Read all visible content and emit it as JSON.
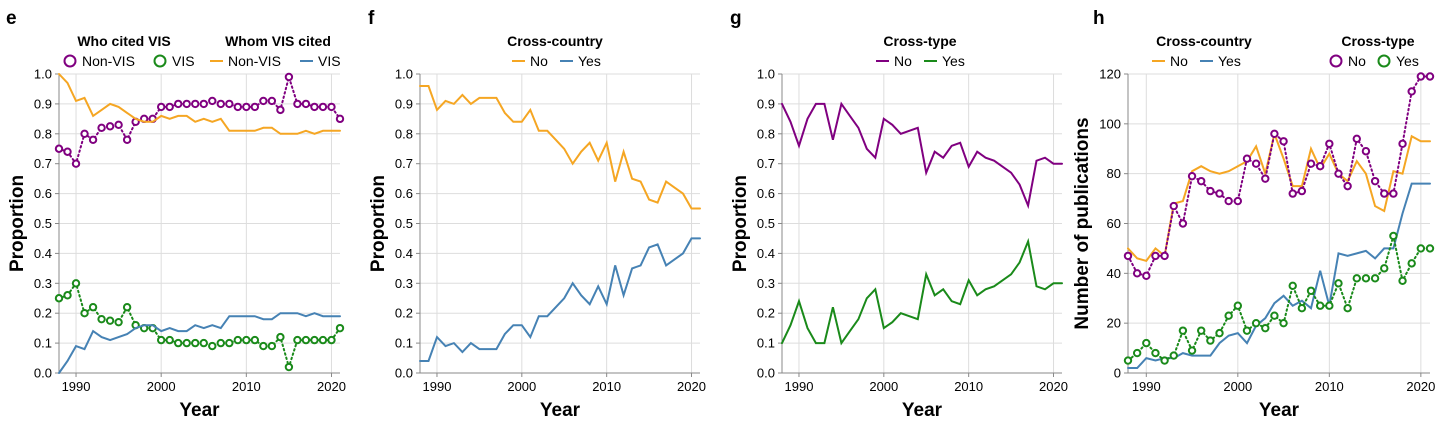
{
  "chart_data": [
    {
      "type": "line",
      "panel": "e",
      "xlabel": "Year",
      "ylabel": "Proportion",
      "xlim": [
        1988,
        2021
      ],
      "ylim": [
        0,
        1.0
      ],
      "x_ticks": [
        1990,
        2000,
        2010,
        2020
      ],
      "y_ticks": [
        "0.0",
        "0.1",
        "0.2",
        "0.3",
        "0.4",
        "0.5",
        "0.6",
        "0.7",
        "0.8",
        "0.9",
        "1.0"
      ],
      "grid": true,
      "legend_groups": [
        {
          "title": "Who cited VIS",
          "style": "dotted-circles",
          "entries": [
            "Non-VIS",
            "VIS"
          ]
        },
        {
          "title": "Whom VIS cited",
          "style": "line",
          "entries": [
            "Non-VIS",
            "VIS"
          ]
        }
      ],
      "x": [
        1988,
        1989,
        1990,
        1991,
        1992,
        1993,
        1994,
        1995,
        1996,
        1997,
        1998,
        1999,
        2000,
        2001,
        2002,
        2003,
        2004,
        2005,
        2006,
        2007,
        2008,
        2009,
        2010,
        2011,
        2012,
        2013,
        2014,
        2015,
        2016,
        2017,
        2018,
        2019,
        2020,
        2021
      ],
      "series": [
        {
          "name": "Non-VIS",
          "group": "Who cited VIS",
          "style": "dotted-circles",
          "color": "#800080",
          "values": [
            0.75,
            0.74,
            0.7,
            0.8,
            0.78,
            0.82,
            0.825,
            0.83,
            0.78,
            0.84,
            0.85,
            0.85,
            0.89,
            0.89,
            0.9,
            0.9,
            0.9,
            0.9,
            0.91,
            0.9,
            0.9,
            0.89,
            0.89,
            0.89,
            0.91,
            0.91,
            0.88,
            0.99,
            0.9,
            0.9,
            0.89,
            0.89,
            0.89,
            0.85
          ]
        },
        {
          "name": "VIS",
          "group": "Who cited VIS",
          "style": "dotted-circles",
          "color": "#1a8a1a",
          "values": [
            0.25,
            0.26,
            0.3,
            0.2,
            0.22,
            0.18,
            0.175,
            0.17,
            0.22,
            0.16,
            0.15,
            0.15,
            0.11,
            0.11,
            0.1,
            0.1,
            0.1,
            0.1,
            0.09,
            0.1,
            0.1,
            0.11,
            0.11,
            0.11,
            0.09,
            0.09,
            0.12,
            0.02,
            0.11,
            0.11,
            0.11,
            0.11,
            0.11,
            0.15
          ]
        },
        {
          "name": "Non-VIS",
          "group": "Whom VIS cited",
          "style": "line",
          "color": "#f5a623",
          "values": [
            1.0,
            0.97,
            0.91,
            0.92,
            0.86,
            0.88,
            0.9,
            0.89,
            0.87,
            0.85,
            0.84,
            0.84,
            0.86,
            0.85,
            0.86,
            0.86,
            0.84,
            0.85,
            0.84,
            0.85,
            0.81,
            0.81,
            0.81,
            0.81,
            0.82,
            0.82,
            0.8,
            0.8,
            0.8,
            0.81,
            0.8,
            0.81,
            0.81,
            0.81
          ]
        },
        {
          "name": "VIS",
          "group": "Whom VIS cited",
          "style": "line",
          "color": "#4682b4",
          "values": [
            0.0,
            0.04,
            0.09,
            0.08,
            0.14,
            0.12,
            0.11,
            0.12,
            0.13,
            0.15,
            0.16,
            0.16,
            0.14,
            0.15,
            0.14,
            0.14,
            0.16,
            0.15,
            0.16,
            0.15,
            0.19,
            0.19,
            0.19,
            0.19,
            0.18,
            0.18,
            0.2,
            0.2,
            0.2,
            0.19,
            0.2,
            0.19,
            0.19,
            0.19
          ]
        }
      ]
    },
    {
      "type": "line",
      "panel": "f",
      "xlabel": "Year",
      "ylabel": "Proportion",
      "xlim": [
        1988,
        2021
      ],
      "ylim": [
        0,
        1.0
      ],
      "x_ticks": [
        1990,
        2000,
        2010,
        2020
      ],
      "y_ticks": [
        "0.0",
        "0.1",
        "0.2",
        "0.3",
        "0.4",
        "0.5",
        "0.6",
        "0.7",
        "0.8",
        "0.9",
        "1.0"
      ],
      "grid": true,
      "legend_groups": [
        {
          "title": "Cross-country",
          "style": "line",
          "entries": [
            "No",
            "Yes"
          ]
        }
      ],
      "x": [
        1988,
        1989,
        1990,
        1991,
        1992,
        1993,
        1994,
        1995,
        1996,
        1997,
        1998,
        1999,
        2000,
        2001,
        2002,
        2003,
        2004,
        2005,
        2006,
        2007,
        2008,
        2009,
        2010,
        2011,
        2012,
        2013,
        2014,
        2015,
        2016,
        2017,
        2018,
        2019,
        2020,
        2021
      ],
      "series": [
        {
          "name": "No",
          "color": "#f5a623",
          "values": [
            0.96,
            0.96,
            0.88,
            0.91,
            0.9,
            0.93,
            0.9,
            0.92,
            0.92,
            0.92,
            0.87,
            0.84,
            0.84,
            0.88,
            0.81,
            0.81,
            0.78,
            0.75,
            0.7,
            0.74,
            0.77,
            0.71,
            0.77,
            0.64,
            0.74,
            0.65,
            0.64,
            0.58,
            0.57,
            0.64,
            0.62,
            0.6,
            0.55,
            0.55
          ]
        },
        {
          "name": "Yes",
          "color": "#4682b4",
          "values": [
            0.04,
            0.04,
            0.12,
            0.09,
            0.1,
            0.07,
            0.1,
            0.08,
            0.08,
            0.08,
            0.13,
            0.16,
            0.16,
            0.12,
            0.19,
            0.19,
            0.22,
            0.25,
            0.3,
            0.26,
            0.23,
            0.29,
            0.23,
            0.36,
            0.26,
            0.35,
            0.36,
            0.42,
            0.43,
            0.36,
            0.38,
            0.4,
            0.45,
            0.45
          ]
        }
      ]
    },
    {
      "type": "line",
      "panel": "g",
      "xlabel": "Year",
      "ylabel": "Proportion",
      "xlim": [
        1988,
        2021
      ],
      "ylim": [
        0,
        1.0
      ],
      "x_ticks": [
        1990,
        2000,
        2010,
        2020
      ],
      "y_ticks": [
        "0.0",
        "0.1",
        "0.2",
        "0.3",
        "0.4",
        "0.5",
        "0.6",
        "0.7",
        "0.8",
        "0.9",
        "1.0"
      ],
      "grid": true,
      "legend_groups": [
        {
          "title": "Cross-type",
          "style": "line",
          "entries": [
            "No",
            "Yes"
          ]
        }
      ],
      "x": [
        1988,
        1989,
        1990,
        1991,
        1992,
        1993,
        1994,
        1995,
        1996,
        1997,
        1998,
        1999,
        2000,
        2001,
        2002,
        2003,
        2004,
        2005,
        2006,
        2007,
        2008,
        2009,
        2010,
        2011,
        2012,
        2013,
        2014,
        2015,
        2016,
        2017,
        2018,
        2019,
        2020,
        2021
      ],
      "series": [
        {
          "name": "No",
          "color": "#800080",
          "values": [
            0.9,
            0.84,
            0.76,
            0.85,
            0.9,
            0.9,
            0.78,
            0.9,
            0.86,
            0.82,
            0.75,
            0.72,
            0.85,
            0.83,
            0.8,
            0.81,
            0.82,
            0.67,
            0.74,
            0.72,
            0.76,
            0.77,
            0.69,
            0.74,
            0.72,
            0.71,
            0.69,
            0.67,
            0.63,
            0.56,
            0.71,
            0.72,
            0.7,
            0.7
          ]
        },
        {
          "name": "Yes",
          "color": "#1a8a1a",
          "values": [
            0.1,
            0.16,
            0.24,
            0.15,
            0.1,
            0.1,
            0.22,
            0.1,
            0.14,
            0.18,
            0.25,
            0.28,
            0.15,
            0.17,
            0.2,
            0.19,
            0.18,
            0.33,
            0.26,
            0.28,
            0.24,
            0.23,
            0.31,
            0.26,
            0.28,
            0.29,
            0.31,
            0.33,
            0.37,
            0.44,
            0.29,
            0.28,
            0.3,
            0.3
          ]
        }
      ]
    },
    {
      "type": "line",
      "panel": "h",
      "xlabel": "Year",
      "ylabel": "Number of publications",
      "xlim": [
        1988,
        2021
      ],
      "ylim": [
        0,
        120
      ],
      "x_ticks": [
        1990,
        2000,
        2010,
        2020
      ],
      "y_ticks": [
        "0",
        "20",
        "40",
        "60",
        "80",
        "100",
        "120"
      ],
      "grid": true,
      "legend_groups": [
        {
          "title": "Cross-country",
          "style": "line",
          "entries": [
            "No",
            "Yes"
          ]
        },
        {
          "title": "Cross-type",
          "style": "dotted-circles",
          "entries": [
            "No",
            "Yes"
          ]
        }
      ],
      "x": [
        1988,
        1989,
        1990,
        1991,
        1992,
        1993,
        1994,
        1995,
        1996,
        1997,
        1998,
        1999,
        2000,
        2001,
        2002,
        2003,
        2004,
        2005,
        2006,
        2007,
        2008,
        2009,
        2010,
        2011,
        2012,
        2013,
        2014,
        2015,
        2016,
        2017,
        2018,
        2019,
        2020,
        2021
      ],
      "series": [
        {
          "name": "No",
          "group": "Cross-country",
          "style": "line",
          "color": "#f5a623",
          "values": [
            50,
            46,
            45,
            50,
            47,
            68,
            69,
            81,
            83,
            81,
            80,
            81,
            83,
            85,
            91,
            80,
            96,
            86,
            75,
            75,
            90,
            82,
            88,
            80,
            77,
            85,
            80,
            67,
            65,
            81,
            80,
            95,
            93,
            93
          ]
        },
        {
          "name": "Yes",
          "group": "Cross-country",
          "style": "line",
          "color": "#4682b4",
          "values": [
            2,
            2,
            6,
            5,
            6,
            6,
            8,
            7,
            7,
            7,
            12,
            15,
            16,
            12,
            19,
            22,
            28,
            31,
            27,
            29,
            26,
            41,
            27,
            48,
            47,
            48,
            49,
            46,
            50,
            50,
            64,
            76,
            76,
            76
          ]
        },
        {
          "name": "No",
          "group": "Cross-type",
          "style": "dotted-circles",
          "color": "#800080",
          "values": [
            47,
            40,
            39,
            47,
            47,
            67,
            60,
            79,
            77,
            73,
            72,
            69,
            69,
            86,
            84,
            78,
            96,
            93,
            72,
            73,
            84,
            83,
            92,
            80,
            75,
            94,
            89,
            77,
            72,
            72,
            92,
            113,
            119,
            119
          ]
        },
        {
          "name": "Yes",
          "group": "Cross-type",
          "style": "dotted-circles",
          "color": "#1a8a1a",
          "values": [
            5,
            8,
            12,
            8,
            5,
            7,
            17,
            9,
            17,
            13,
            16,
            23,
            27,
            17,
            20,
            18,
            23,
            20,
            35,
            26,
            33,
            27,
            27,
            36,
            26,
            38,
            38,
            38,
            42,
            55,
            37,
            44,
            50,
            50
          ]
        }
      ]
    }
  ]
}
